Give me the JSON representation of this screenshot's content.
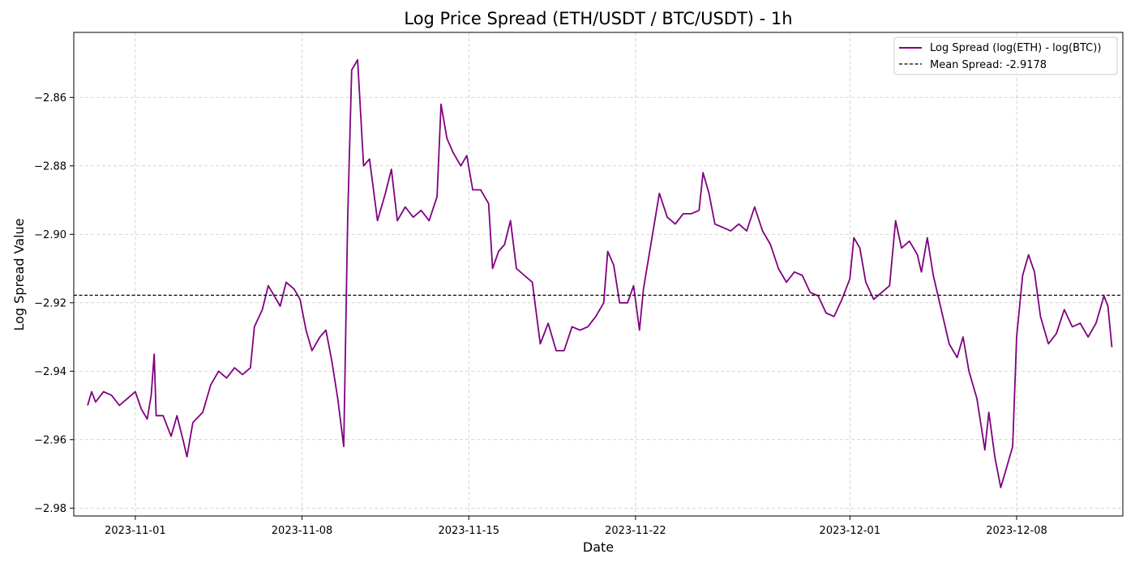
{
  "chart_data": {
    "type": "line",
    "title": "Log Price Spread (ETH/USDT / BTC/USDT) - 1h",
    "xlabel": "Date",
    "ylabel": "Log Spread Value",
    "x_range": [
      "2023-10-29T10:00",
      "2023-12-12T11:00"
    ],
    "ylim": [
      -2.9823,
      -2.841
    ],
    "x_ticks": [
      "2023-11-01",
      "2023-11-08",
      "2023-11-15",
      "2023-11-22",
      "2023-12-01",
      "2023-12-08"
    ],
    "y_ticks": [
      -2.86,
      -2.88,
      -2.9,
      -2.92,
      -2.94,
      -2.96,
      -2.98
    ],
    "y_tick_labels": [
      "−2.86",
      "−2.88",
      "−2.90",
      "−2.92",
      "−2.94",
      "−2.96",
      "−2.98"
    ],
    "grid": true,
    "legend_position": "top-right",
    "series": [
      {
        "name": "Log Spread (log(ETH) - log(BTC))",
        "color": "#800080",
        "style": "solid",
        "points": [
          [
            "2023-10-30T00:00",
            -2.95
          ],
          [
            "2023-10-30T04:00",
            -2.946
          ],
          [
            "2023-10-30T08:00",
            -2.949
          ],
          [
            "2023-10-30T16:00",
            -2.946
          ],
          [
            "2023-10-31T00:00",
            -2.947
          ],
          [
            "2023-10-31T08:00",
            -2.95
          ],
          [
            "2023-10-31T16:00",
            -2.948
          ],
          [
            "2023-11-01T00:00",
            -2.946
          ],
          [
            "2023-11-01T06:00",
            -2.951
          ],
          [
            "2023-11-01T12:00",
            -2.954
          ],
          [
            "2023-11-01T16:00",
            -2.947
          ],
          [
            "2023-11-01T19:00",
            -2.935
          ],
          [
            "2023-11-01T21:00",
            -2.953
          ],
          [
            "2023-11-02T04:00",
            -2.953
          ],
          [
            "2023-11-02T12:00",
            -2.959
          ],
          [
            "2023-11-02T18:00",
            -2.953
          ],
          [
            "2023-11-03T00:00",
            -2.96
          ],
          [
            "2023-11-03T04:00",
            -2.965
          ],
          [
            "2023-11-03T10:00",
            -2.955
          ],
          [
            "2023-11-03T20:00",
            -2.952
          ],
          [
            "2023-11-04T04:00",
            -2.944
          ],
          [
            "2023-11-04T12:00",
            -2.94
          ],
          [
            "2023-11-04T20:00",
            -2.942
          ],
          [
            "2023-11-05T04:00",
            -2.939
          ],
          [
            "2023-11-05T12:00",
            -2.941
          ],
          [
            "2023-11-05T20:00",
            -2.939
          ],
          [
            "2023-11-06T00:00",
            -2.927
          ],
          [
            "2023-11-06T08:00",
            -2.922
          ],
          [
            "2023-11-06T14:00",
            -2.915
          ],
          [
            "2023-11-06T20:00",
            -2.918
          ],
          [
            "2023-11-07T02:00",
            -2.921
          ],
          [
            "2023-11-07T08:00",
            -2.914
          ],
          [
            "2023-11-07T16:00",
            -2.916
          ],
          [
            "2023-11-07T22:00",
            -2.919
          ],
          [
            "2023-11-08T04:00",
            -2.928
          ],
          [
            "2023-11-08T10:00",
            -2.934
          ],
          [
            "2023-11-08T18:00",
            -2.93
          ],
          [
            "2023-11-09T00:00",
            -2.928
          ],
          [
            "2023-11-09T06:00",
            -2.937
          ],
          [
            "2023-11-09T12:00",
            -2.948
          ],
          [
            "2023-11-09T18:00",
            -2.962
          ],
          [
            "2023-11-09T22:00",
            -2.895
          ],
          [
            "2023-11-10T02:00",
            -2.852
          ],
          [
            "2023-11-10T08:00",
            -2.849
          ],
          [
            "2023-11-10T14:00",
            -2.88
          ],
          [
            "2023-11-10T20:00",
            -2.878
          ],
          [
            "2023-11-11T04:00",
            -2.896
          ],
          [
            "2023-11-11T12:00",
            -2.888
          ],
          [
            "2023-11-11T18:00",
            -2.881
          ],
          [
            "2023-11-12T00:00",
            -2.896
          ],
          [
            "2023-11-12T08:00",
            -2.892
          ],
          [
            "2023-11-12T16:00",
            -2.895
          ],
          [
            "2023-11-13T00:00",
            -2.893
          ],
          [
            "2023-11-13T08:00",
            -2.896
          ],
          [
            "2023-11-13T16:00",
            -2.889
          ],
          [
            "2023-11-13T20:00",
            -2.862
          ],
          [
            "2023-11-14T02:00",
            -2.872
          ],
          [
            "2023-11-14T08:00",
            -2.876
          ],
          [
            "2023-11-14T16:00",
            -2.88
          ],
          [
            "2023-11-14T22:00",
            -2.877
          ],
          [
            "2023-11-15T04:00",
            -2.887
          ],
          [
            "2023-11-15T12:00",
            -2.887
          ],
          [
            "2023-11-15T20:00",
            -2.891
          ],
          [
            "2023-11-16T00:00",
            -2.91
          ],
          [
            "2023-11-16T06:00",
            -2.905
          ],
          [
            "2023-11-16T12:00",
            -2.903
          ],
          [
            "2023-11-16T18:00",
            -2.896
          ],
          [
            "2023-11-17T00:00",
            -2.91
          ],
          [
            "2023-11-17T08:00",
            -2.912
          ],
          [
            "2023-11-17T16:00",
            -2.914
          ],
          [
            "2023-11-18T00:00",
            -2.932
          ],
          [
            "2023-11-18T08:00",
            -2.926
          ],
          [
            "2023-11-18T16:00",
            -2.934
          ],
          [
            "2023-11-19T00:00",
            -2.934
          ],
          [
            "2023-11-19T08:00",
            -2.927
          ],
          [
            "2023-11-19T16:00",
            -2.928
          ],
          [
            "2023-11-20T00:00",
            -2.927
          ],
          [
            "2023-11-20T08:00",
            -2.924
          ],
          [
            "2023-11-20T16:00",
            -2.92
          ],
          [
            "2023-11-20T20:00",
            -2.905
          ],
          [
            "2023-11-21T02:00",
            -2.909
          ],
          [
            "2023-11-21T08:00",
            -2.92
          ],
          [
            "2023-11-21T16:00",
            -2.92
          ],
          [
            "2023-11-21T22:00",
            -2.915
          ],
          [
            "2023-11-22T04:00",
            -2.928
          ],
          [
            "2023-11-22T08:00",
            -2.916
          ],
          [
            "2023-11-22T16:00",
            -2.902
          ],
          [
            "2023-11-23T00:00",
            -2.888
          ],
          [
            "2023-11-23T08:00",
            -2.895
          ],
          [
            "2023-11-23T16:00",
            -2.897
          ],
          [
            "2023-11-24T00:00",
            -2.894
          ],
          [
            "2023-11-24T08:00",
            -2.894
          ],
          [
            "2023-11-24T16:00",
            -2.893
          ],
          [
            "2023-11-24T20:00",
            -2.882
          ],
          [
            "2023-11-25T02:00",
            -2.888
          ],
          [
            "2023-11-25T08:00",
            -2.897
          ],
          [
            "2023-11-25T16:00",
            -2.898
          ],
          [
            "2023-11-26T00:00",
            -2.899
          ],
          [
            "2023-11-26T08:00",
            -2.897
          ],
          [
            "2023-11-26T16:00",
            -2.899
          ],
          [
            "2023-11-27T00:00",
            -2.892
          ],
          [
            "2023-11-27T08:00",
            -2.899
          ],
          [
            "2023-11-27T16:00",
            -2.903
          ],
          [
            "2023-11-28T00:00",
            -2.91
          ],
          [
            "2023-11-28T08:00",
            -2.914
          ],
          [
            "2023-11-28T16:00",
            -2.911
          ],
          [
            "2023-11-29T00:00",
            -2.912
          ],
          [
            "2023-11-29T08:00",
            -2.917
          ],
          [
            "2023-11-29T16:00",
            -2.918
          ],
          [
            "2023-11-30T00:00",
            -2.923
          ],
          [
            "2023-11-30T08:00",
            -2.924
          ],
          [
            "2023-11-30T16:00",
            -2.919
          ],
          [
            "2023-12-01T00:00",
            -2.913
          ],
          [
            "2023-12-01T04:00",
            -2.901
          ],
          [
            "2023-12-01T10:00",
            -2.904
          ],
          [
            "2023-12-01T16:00",
            -2.914
          ],
          [
            "2023-12-02T00:00",
            -2.919
          ],
          [
            "2023-12-02T08:00",
            -2.917
          ],
          [
            "2023-12-02T16:00",
            -2.915
          ],
          [
            "2023-12-02T22:00",
            -2.896
          ],
          [
            "2023-12-03T04:00",
            -2.904
          ],
          [
            "2023-12-03T12:00",
            -2.902
          ],
          [
            "2023-12-03T20:00",
            -2.906
          ],
          [
            "2023-12-04T00:00",
            -2.911
          ],
          [
            "2023-12-04T06:00",
            -2.901
          ],
          [
            "2023-12-04T12:00",
            -2.912
          ],
          [
            "2023-12-04T20:00",
            -2.922
          ],
          [
            "2023-12-05T04:00",
            -2.932
          ],
          [
            "2023-12-05T12:00",
            -2.936
          ],
          [
            "2023-12-05T18:00",
            -2.93
          ],
          [
            "2023-12-06T00:00",
            -2.94
          ],
          [
            "2023-12-06T08:00",
            -2.948
          ],
          [
            "2023-12-06T16:00",
            -2.963
          ],
          [
            "2023-12-06T20:00",
            -2.952
          ],
          [
            "2023-12-07T02:00",
            -2.965
          ],
          [
            "2023-12-07T08:00",
            -2.974
          ],
          [
            "2023-12-07T14:00",
            -2.968
          ],
          [
            "2023-12-07T20:00",
            -2.962
          ],
          [
            "2023-12-08T00:00",
            -2.93
          ],
          [
            "2023-12-08T06:00",
            -2.912
          ],
          [
            "2023-12-08T12:00",
            -2.906
          ],
          [
            "2023-12-08T18:00",
            -2.911
          ],
          [
            "2023-12-09T00:00",
            -2.924
          ],
          [
            "2023-12-09T08:00",
            -2.932
          ],
          [
            "2023-12-09T16:00",
            -2.929
          ],
          [
            "2023-12-10T00:00",
            -2.922
          ],
          [
            "2023-12-10T08:00",
            -2.927
          ],
          [
            "2023-12-10T16:00",
            -2.926
          ],
          [
            "2023-12-11T00:00",
            -2.93
          ],
          [
            "2023-12-11T08:00",
            -2.926
          ],
          [
            "2023-12-11T16:00",
            -2.918
          ],
          [
            "2023-12-11T20:00",
            -2.921
          ],
          [
            "2023-12-12T00:00",
            -2.933
          ]
        ]
      },
      {
        "name": "Mean Spread: -2.9178",
        "color": "#000000",
        "style": "dashed",
        "y": -2.9178
      }
    ]
  }
}
